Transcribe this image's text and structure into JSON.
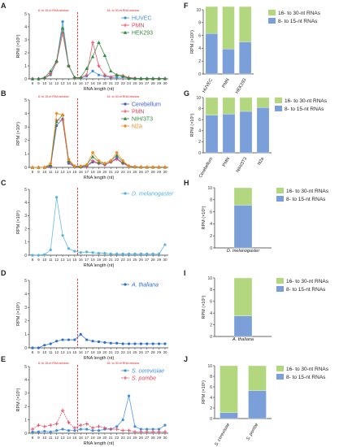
{
  "chart_data": [
    {
      "panel": "A",
      "type": "line",
      "xlabel": "RNA length (nt)",
      "ylabel": "RPM (×10⁵)",
      "x": [
        8,
        9,
        10,
        11,
        12,
        13,
        14,
        15,
        16,
        17,
        18,
        19,
        20,
        21,
        22,
        23,
        24,
        25,
        26,
        27,
        28,
        29,
        30
      ],
      "ylim": [
        0,
        5
      ],
      "yticks": [
        0,
        1,
        2,
        3,
        4,
        5
      ],
      "window_left": "8- to 15-nt RNA window",
      "window_right": "16- to 30-nt RNA window",
      "legend_position": "top-right",
      "series": [
        {
          "name": "HUVEC",
          "color": "#3f8fe0",
          "marker": "circle",
          "values": [
            0,
            0,
            0.05,
            0.3,
            1.3,
            4.4,
            1.0,
            0.1,
            0.05,
            0.2,
            0.6,
            0.3,
            0.2,
            0.1,
            0.1,
            0.15,
            0.05,
            0.03,
            0.02,
            0.02,
            0.02,
            0.02,
            0.02
          ]
        },
        {
          "name": "PMN",
          "color": "#e8445c",
          "marker": "plus",
          "values": [
            0,
            0,
            0.05,
            0.4,
            1.3,
            3.5,
            1.0,
            0.1,
            0.1,
            0.3,
            2.8,
            1.0,
            0.3,
            0.15,
            0.3,
            0.25,
            0.1,
            0.05,
            0.03,
            0.02,
            0.02,
            0.02,
            0.02
          ]
        },
        {
          "name": "HEK293",
          "color": "#2f8a3c",
          "marker": "triangle",
          "values": [
            0,
            0,
            0.1,
            0.6,
            1.4,
            3.9,
            1.0,
            0.1,
            0.1,
            0.8,
            1.7,
            2.8,
            1.8,
            0.6,
            0.3,
            0.2,
            0.05,
            0.03,
            0.02,
            0.02,
            0.02,
            0.02,
            0.02
          ]
        }
      ]
    },
    {
      "panel": "B",
      "type": "line",
      "xlabel": "RNA length (nt)",
      "ylabel": "RPM (×10⁵)",
      "x": [
        8,
        9,
        10,
        11,
        12,
        13,
        14,
        15,
        16,
        17,
        18,
        19,
        20,
        21,
        22,
        23,
        24,
        25,
        26,
        27,
        28,
        29,
        30
      ],
      "ylim": [
        0,
        5
      ],
      "yticks": [
        0,
        1,
        2,
        3,
        4,
        5
      ],
      "window_left": "8- to 15-nt RNA window",
      "window_right": "16- to 30-nt RNA window",
      "legend_position": "top-right",
      "series": [
        {
          "name": "Cerebellum",
          "color": "#3a5bd9",
          "marker": "circle",
          "values": [
            0,
            0,
            0,
            0.05,
            3.1,
            3.6,
            0.3,
            0.05,
            0.05,
            0.1,
            0.4,
            0.3,
            0.2,
            0.4,
            0.7,
            0.3,
            0.1,
            0.05,
            0.03,
            0.02,
            0.02,
            0.02,
            0.02
          ]
        },
        {
          "name": "PMN",
          "color": "#e8445c",
          "marker": "plus",
          "values": [
            0,
            0,
            0,
            0.1,
            3.5,
            3.5,
            0.4,
            0.05,
            0.05,
            0.1,
            0.5,
            0.3,
            0.2,
            0.4,
            0.6,
            0.3,
            0.1,
            0.05,
            0.03,
            0.02,
            0.02,
            0.02,
            0.02
          ]
        },
        {
          "name": "NIH/3T3",
          "color": "#2f8a3c",
          "marker": "triangle",
          "values": [
            0,
            0,
            0,
            0.2,
            3.4,
            3.9,
            0.5,
            0.1,
            0.05,
            0.2,
            0.8,
            0.4,
            0.3,
            0.5,
            0.9,
            0.4,
            0.1,
            0.05,
            0.03,
            0.02,
            0.02,
            0.02,
            0.02
          ]
        },
        {
          "name": "N2a",
          "color": "#ef8a1c",
          "marker": "diamond",
          "values": [
            0,
            0,
            0,
            0.3,
            4.0,
            3.9,
            0.6,
            0.1,
            0.1,
            0.2,
            1.1,
            0.5,
            0.3,
            0.5,
            1.1,
            0.5,
            0.1,
            0.05,
            0.03,
            0.02,
            0.02,
            0.02,
            0.02
          ]
        }
      ]
    },
    {
      "panel": "C",
      "type": "line",
      "xlabel": "RNA length (nt)",
      "ylabel": "RPM (×10⁵)",
      "x": [
        8,
        9,
        10,
        11,
        12,
        13,
        14,
        15,
        16,
        17,
        18,
        19,
        20,
        21,
        22,
        23,
        24,
        25,
        26,
        27,
        28,
        29,
        30
      ],
      "ylim": [
        0,
        5
      ],
      "yticks": [
        0,
        1,
        2,
        3,
        4,
        5
      ],
      "legend_position": "top-right",
      "series": [
        {
          "name": "D. melanogaster",
          "color": "#56b4e0",
          "marker": "circle",
          "values": [
            0,
            0,
            0.05,
            0.4,
            4.4,
            1.5,
            0.5,
            0.3,
            0.2,
            0.25,
            0.2,
            0.15,
            0.15,
            0.1,
            0.1,
            0.1,
            0.1,
            0.1,
            0.1,
            0.1,
            0.1,
            0.1,
            0.8
          ]
        }
      ]
    },
    {
      "panel": "D",
      "type": "line",
      "xlabel": "RNA length (nt)",
      "ylabel": "RPM (×10⁵)",
      "x": [
        8,
        9,
        10,
        11,
        12,
        13,
        14,
        15,
        16,
        17,
        18,
        19,
        20,
        21,
        22,
        23,
        24,
        25,
        26,
        27,
        28,
        29,
        30
      ],
      "ylim": [
        0,
        5
      ],
      "yticks": [
        0,
        1,
        2,
        3,
        4,
        5
      ],
      "legend_position": "top-right",
      "series": [
        {
          "name": "A. thaliana",
          "color": "#2d6fcf",
          "marker": "circle",
          "values": [
            0,
            0,
            0.2,
            0.3,
            0.5,
            0.6,
            0.6,
            0.6,
            1.0,
            0.6,
            0.5,
            0.45,
            0.4,
            0.35,
            0.35,
            0.3,
            0.3,
            0.3,
            0.3,
            0.3,
            0.3,
            0.3,
            0.3
          ]
        }
      ]
    },
    {
      "panel": "E",
      "type": "line",
      "xlabel": "RNA length (nt)",
      "ylabel": "RPM (×10⁵)",
      "x": [
        8,
        9,
        10,
        11,
        12,
        13,
        14,
        15,
        16,
        17,
        18,
        19,
        20,
        21,
        22,
        23,
        24,
        25,
        26,
        27,
        28,
        29,
        30
      ],
      "ylim": [
        0,
        5
      ],
      "yticks": [
        0,
        1,
        2,
        3,
        4,
        5
      ],
      "window_left": "8- to 15-nt RNA window",
      "window_right": "16- to 30-nt RNA window",
      "legend_position": "top-right",
      "series": [
        {
          "name": "S. cerevisiae",
          "color": "#3f8fe0",
          "marker": "circle",
          "values": [
            0.1,
            0.1,
            0.15,
            0.1,
            0.2,
            0.3,
            0.2,
            0.2,
            0.3,
            0.3,
            0.2,
            0.2,
            0.3,
            0.3,
            0.5,
            1.0,
            2.8,
            0.5,
            0.3,
            0.3,
            0.3,
            0.3,
            0.6
          ]
        },
        {
          "name": "S. pombe",
          "color": "#e8445c",
          "marker": "plus",
          "values": [
            0.3,
            0.6,
            0.5,
            0.6,
            0.7,
            1.7,
            0.8,
            0.4,
            0.6,
            0.7,
            0.4,
            0.5,
            0.4,
            0.3,
            0.3,
            0.2,
            0.2,
            0.1,
            0.1,
            0.1,
            0.1,
            0.1,
            0.1
          ]
        }
      ]
    },
    {
      "panel": "F",
      "type": "bar",
      "stacked": true,
      "ylabel": "RPM (×10⁵)",
      "categories": [
        "HUVEC",
        "PMN",
        "HEK293"
      ],
      "ylim": [
        0,
        10
      ],
      "yticks": [
        0,
        2,
        4,
        6,
        8,
        10
      ],
      "legend_position": "top-right",
      "series": [
        {
          "name": "8- to 15-nt RNAs",
          "color": "#7b9fd8",
          "values": [
            6.3,
            3.9,
            5.0
          ]
        },
        {
          "name": "16- to 30-nt RNAs",
          "color": "#b3d77e",
          "values": [
            4.2,
            6.6,
            5.5
          ]
        }
      ]
    },
    {
      "panel": "G",
      "type": "bar",
      "stacked": true,
      "ylabel": "RPM (×10⁵)",
      "categories": [
        "Cerebellum",
        "PMN",
        "NIH/3T3",
        "N2a"
      ],
      "ylim": [
        0,
        10
      ],
      "yticks": [
        0,
        2,
        4,
        6,
        8,
        10
      ],
      "legend_position": "top-right",
      "series": [
        {
          "name": "8- to 15-nt RNAs",
          "color": "#7b9fd8",
          "values": [
            6.8,
            7.0,
            7.5,
            8.2
          ]
        },
        {
          "name": "16- to 30-nt RNAs",
          "color": "#b3d77e",
          "values": [
            3.2,
            3.0,
            2.5,
            1.8
          ]
        }
      ]
    },
    {
      "panel": "H",
      "type": "bar",
      "stacked": true,
      "ylabel": "RPM (×10⁵)",
      "categories": [
        "D. melanogaster"
      ],
      "ylim": [
        0,
        10
      ],
      "yticks": [
        0,
        2,
        4,
        6,
        8,
        10
      ],
      "legend_position": "top-right",
      "series": [
        {
          "name": "8- to 15-nt RNAs",
          "color": "#7b9fd8",
          "values": [
            7.1
          ]
        },
        {
          "name": "16- to 30-nt RNAs",
          "color": "#b3d77e",
          "values": [
            2.9
          ]
        }
      ]
    },
    {
      "panel": "I",
      "type": "bar",
      "stacked": true,
      "ylabel": "RPM (×10⁵)",
      "categories": [
        "A. thaliana"
      ],
      "ylim": [
        0,
        10
      ],
      "yticks": [
        0,
        2,
        4,
        6,
        8,
        10
      ],
      "legend_position": "top-right",
      "series": [
        {
          "name": "8- to 15-nt RNAs",
          "color": "#7b9fd8",
          "values": [
            3.5
          ]
        },
        {
          "name": "16- to 30-nt RNAs",
          "color": "#b3d77e",
          "values": [
            6.5
          ]
        }
      ]
    },
    {
      "panel": "J",
      "type": "bar",
      "stacked": true,
      "ylabel": "RPM (×10⁵)",
      "categories": [
        "S. cerevisiae",
        "S. pombe"
      ],
      "ylim": [
        0,
        10
      ],
      "yticks": [
        0,
        2,
        4,
        6,
        8,
        10
      ],
      "legend_position": "top-right",
      "series": [
        {
          "name": "8- to 15-nt RNAs",
          "color": "#7b9fd8",
          "values": [
            1.1,
            5.3
          ]
        },
        {
          "name": "16- to 30-nt RNAs",
          "color": "#b3d77e",
          "values": [
            8.9,
            4.7
          ]
        }
      ]
    }
  ]
}
